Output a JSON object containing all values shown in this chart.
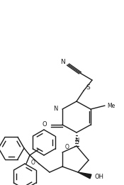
{
  "bg_color": "#ffffff",
  "line_color": "#1a1a1a",
  "line_width": 1.0,
  "figsize": [
    1.75,
    2.61
  ],
  "dpi": 100,
  "xlim": [
    0,
    175
  ],
  "ylim": [
    0,
    261
  ]
}
